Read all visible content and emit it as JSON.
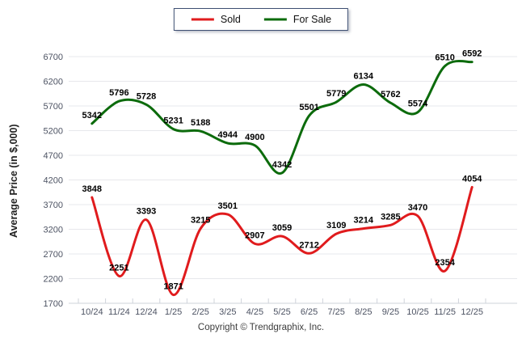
{
  "footer": {
    "text": "Copyright © Trendgraphix, Inc."
  },
  "colors": {
    "sold": "#e01b1d",
    "for_sale": "#0c6b0c",
    "grid": "#e7e8ec",
    "axis_line": "#cfd3da",
    "tick_text": "#4d5363",
    "data_label": "#000000",
    "legend_border": "#3e4f72"
  },
  "chart_data": {
    "type": "line",
    "title": "",
    "xlabel": "",
    "ylabel": "Average Price (in $,000)",
    "categories": [
      "10/24",
      "11/24",
      "12/24",
      "1/25",
      "2/25",
      "3/25",
      "4/25",
      "5/25",
      "6/25",
      "7/25",
      "8/25",
      "9/25",
      "10/25",
      "11/25",
      "12/25"
    ],
    "series": [
      {
        "name": "Sold",
        "color": "#e01b1d",
        "values": [
          3848,
          2251,
          3393,
          1871,
          3215,
          3501,
          2907,
          3059,
          2712,
          3109,
          3214,
          3285,
          3470,
          2354,
          4054
        ]
      },
      {
        "name": "For Sale",
        "color": "#0c6b0c",
        "values": [
          5342,
          5796,
          5728,
          5231,
          5188,
          4944,
          4900,
          4342,
          5501,
          5779,
          6134,
          5762,
          5574,
          6510,
          6592
        ]
      }
    ],
    "ylim": [
      1700,
      6700
    ],
    "ytick_step": 500,
    "yticks": [
      1700,
      2200,
      2700,
      3200,
      3700,
      4200,
      4700,
      5200,
      5700,
      6200,
      6700
    ],
    "grid": true,
    "smooth": true,
    "data_labels": true,
    "legend_position": "top-center"
  }
}
